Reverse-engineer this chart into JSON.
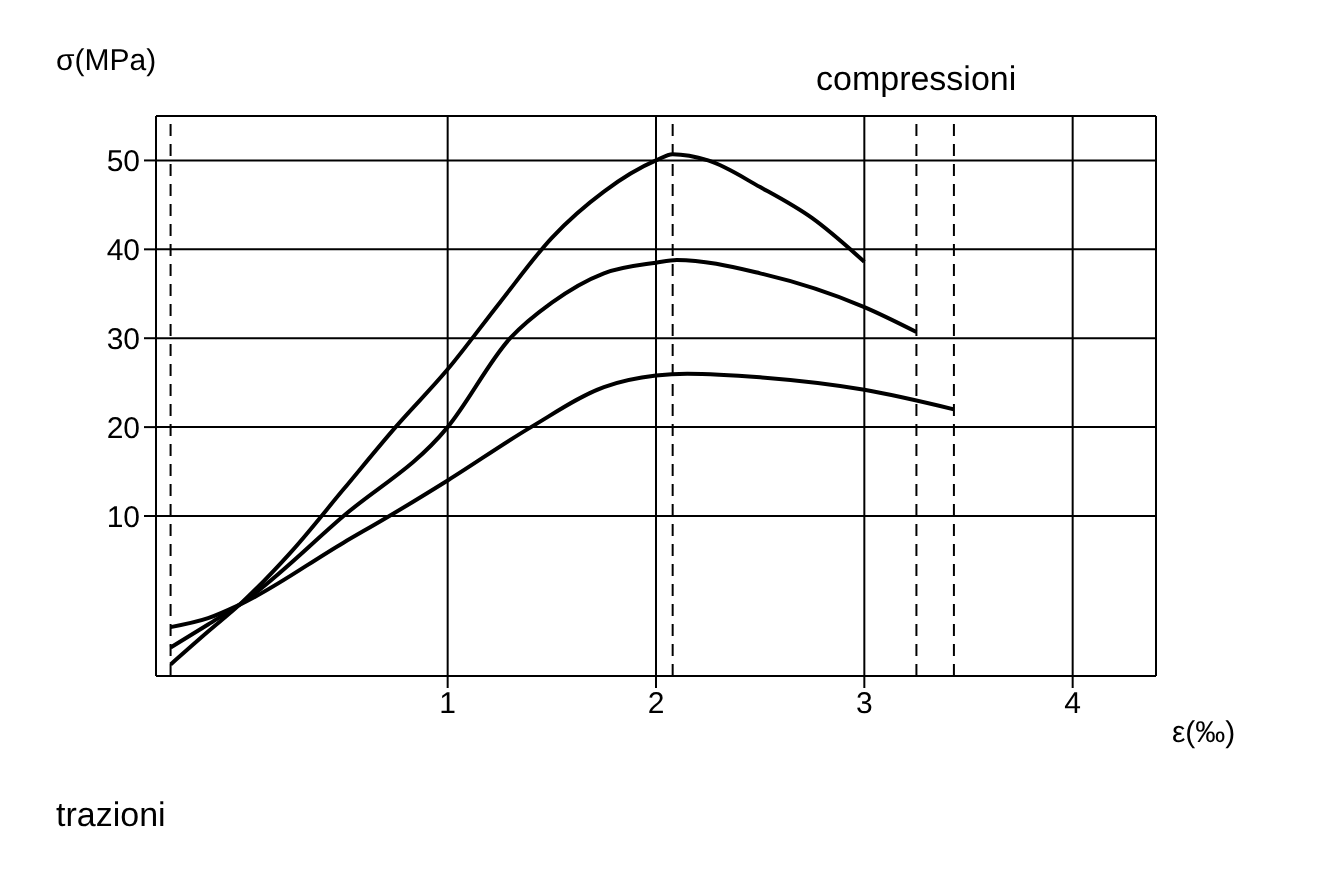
{
  "chart_data": {
    "type": "line",
    "xlabel": "ε(‰)",
    "ylabel": "σ(MPa)",
    "annotations": [
      "compressioni",
      "trazioni"
    ],
    "series": [
      {
        "color": "#000000",
        "x": [
          -0.33,
          -0.15,
          0,
          0.25,
          0.5,
          0.75,
          1,
          1.25,
          1.5,
          1.75,
          2,
          2.08,
          2.25,
          2.5,
          2.75,
          3
        ],
        "values": [
          -6.7,
          -3,
          0,
          6,
          13,
          20,
          26.5,
          34,
          41.3,
          46.5,
          50,
          50.7,
          50,
          47,
          43.5,
          38.6
        ]
      },
      {
        "color": "#000000",
        "x": [
          -0.33,
          -0.15,
          0,
          0.5,
          1,
          1.3,
          1.5,
          1.75,
          2,
          2.1,
          2.5,
          3,
          3.25
        ],
        "values": [
          -4.8,
          -2.2,
          0,
          10,
          20,
          30,
          34,
          37.3,
          38.5,
          38.8,
          37.3,
          33.5,
          30.7
        ]
      },
      {
        "color": "#000000",
        "x": [
          -0.33,
          -0.15,
          0,
          0.5,
          0.72,
          1,
          1.4,
          1.75,
          2,
          2.15,
          2.5,
          3,
          3.43
        ],
        "values": [
          -2.5,
          -1.5,
          0,
          7,
          10,
          14,
          20,
          24.5,
          25.8,
          26,
          25.6,
          24.2,
          22
        ]
      }
    ],
    "ref_lines": [
      {
        "axis": "x",
        "value": -0.33,
        "line_style": "dashed",
        "color": "#000000"
      },
      {
        "axis": "x",
        "value": 2.08,
        "line_style": "dashed",
        "color": "#000000"
      },
      {
        "axis": "x",
        "value": 3.25,
        "line_style": "dashed",
        "color": "#000000"
      },
      {
        "axis": "x",
        "value": 3.43,
        "line_style": "dashed",
        "color": "#000000"
      }
    ],
    "xlim": [
      -0.4,
      4.4
    ],
    "ylim": [
      -8,
      55
    ],
    "xticks": [
      1,
      2,
      3,
      4
    ],
    "yticks": [
      10,
      20,
      30,
      40,
      50
    ],
    "grid": true,
    "marker": "none",
    "line_style": "solid"
  }
}
